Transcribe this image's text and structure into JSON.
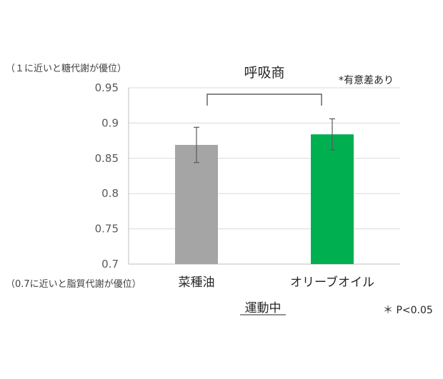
{
  "chart_data": {
    "type": "bar",
    "title": "呼吸商",
    "categories": [
      "菜種油",
      "オリーブオイル"
    ],
    "values": [
      0.869,
      0.884
    ],
    "error": [
      0.025,
      0.022
    ],
    "colors": [
      "#a5a5a5",
      "#00b050"
    ],
    "ylim": [
      0.7,
      0.95
    ],
    "yticks": [
      "0.7",
      "0.75",
      "0.8",
      "0.85",
      "0.9",
      "0.95"
    ],
    "xlabel": "運動中",
    "grid": true,
    "annotations": {
      "top_note": "（１に近いと糖代謝が優位）",
      "bottom_note": "（0.7に近いと脂質代謝が優位）",
      "significance": "*有意差あり",
      "p_value": "＊ P<0.05"
    }
  }
}
